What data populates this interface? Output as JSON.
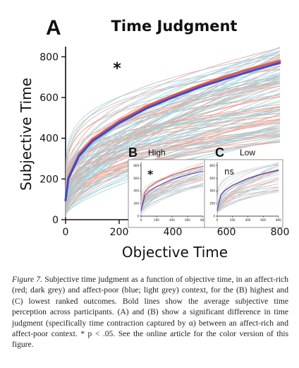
{
  "figure": {
    "panel_label": "A",
    "title": "Time Judgment",
    "significance_marker": "*"
  },
  "chart_data": [
    {
      "type": "line",
      "panel": "A",
      "title": "Time Judgment",
      "xlabel": "Objective Time",
      "ylabel": "Subjective Time",
      "xlim": [
        0,
        800
      ],
      "ylim": [
        0,
        850
      ],
      "xticks": [
        0,
        200,
        400,
        600,
        800
      ],
      "yticks": [
        0,
        200,
        400,
        600,
        800
      ],
      "annotation": "*",
      "series": [
        {
          "name": "affect-rich",
          "color": "#e8553f",
          "x": [
            0,
            10,
            50,
            100,
            200,
            300,
            400,
            500,
            600,
            700,
            800
          ],
          "y": [
            95,
            205,
            320,
            395,
            485,
            555,
            610,
            660,
            705,
            745,
            780
          ]
        },
        {
          "name": "affect-poor",
          "color": "#3a4bd1",
          "x": [
            0,
            10,
            50,
            100,
            200,
            300,
            400,
            500,
            600,
            700,
            800
          ],
          "y": [
            95,
            200,
            312,
            385,
            475,
            545,
            600,
            650,
            693,
            733,
            770
          ]
        }
      ]
    },
    {
      "type": "line",
      "panel": "B",
      "title": "High",
      "annotation": "*",
      "xlabel": "time",
      "ylabel": "value",
      "xlim": [
        0,
        800
      ],
      "ylim": [
        0,
        850
      ],
      "xticks": [
        0,
        200,
        400,
        600,
        800
      ],
      "yticks": [
        0,
        200,
        400,
        600,
        800
      ],
      "series": [
        {
          "name": "affect-rich",
          "color": "#e8553f",
          "x": [
            0,
            50,
            100,
            200,
            400,
            600,
            800
          ],
          "y": [
            90,
            380,
            460,
            540,
            650,
            730,
            790
          ]
        },
        {
          "name": "affect-poor",
          "color": "#3a4bd1",
          "x": [
            0,
            50,
            100,
            200,
            400,
            600,
            800
          ],
          "y": [
            90,
            320,
            390,
            470,
            580,
            655,
            710
          ]
        }
      ]
    },
    {
      "type": "line",
      "panel": "C",
      "title": "Low",
      "annotation": "ns",
      "xlabel": "time",
      "ylabel": "value",
      "xlim": [
        0,
        800
      ],
      "ylim": [
        0,
        850
      ],
      "xticks": [
        0,
        200,
        400,
        600,
        800
      ],
      "yticks": [
        0,
        200,
        400,
        600,
        800
      ],
      "series": [
        {
          "name": "affect-rich",
          "color": "#e8553f",
          "x": [
            0,
            50,
            100,
            200,
            400,
            600,
            800
          ],
          "y": [
            90,
            340,
            410,
            490,
            600,
            675,
            730
          ]
        },
        {
          "name": "affect-poor",
          "color": "#3a4bd1",
          "x": [
            0,
            50,
            100,
            200,
            400,
            600,
            800
          ],
          "y": [
            90,
            335,
            405,
            485,
            595,
            670,
            725
          ]
        }
      ]
    }
  ],
  "colors": {
    "affect_rich": "#e8553f",
    "affect_poor": "#3a4bd1",
    "rich_light": "#f2a394",
    "poor_light": "#9fd3df",
    "grey_light": "#bdbdbd",
    "axis": "#111111"
  },
  "caption": {
    "lead": "Figure 7.",
    "text": "Subjective time judgment as a function of objective time, in an affect-rich (red; dark grey) and affect-poor (blue; light grey) context, for the (B) highest and (C) lowest ranked outcomes. Bold lines show the average subjective time perception across participants. (A) and (B) show a significant difference in time judgment (specifically time contraction captured by α) between an affect-rich and affect-poor context. * p < .05. See the online article for the color version of this figure."
  }
}
